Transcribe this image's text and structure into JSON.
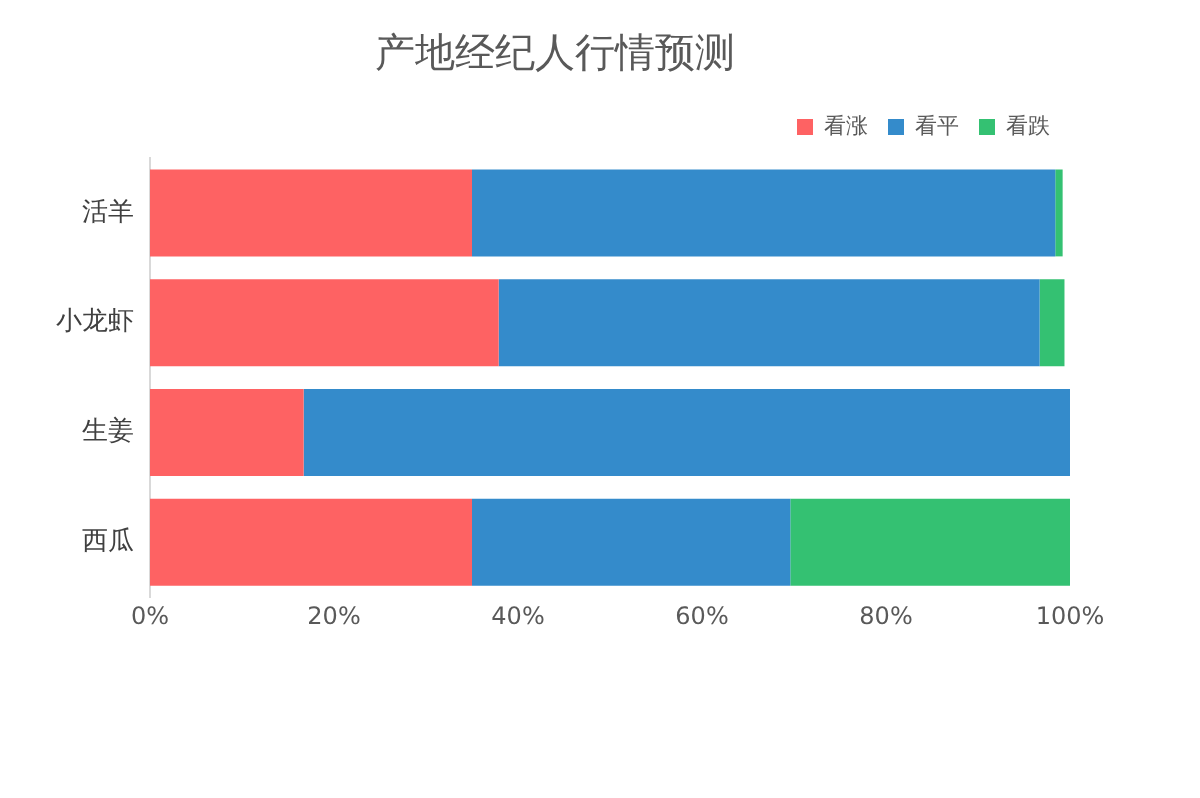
{
  "chart_data": {
    "type": "bar",
    "orientation": "horizontal",
    "stacked": true,
    "title": "产地经纪人行情预测",
    "categories": [
      "活羊",
      "小龙虾",
      "生姜",
      "西瓜"
    ],
    "series": [
      {
        "name": "看涨",
        "color": "#fe6263",
        "values": [
          35,
          37.9,
          16.7,
          35
        ]
      },
      {
        "name": "看平",
        "color": "#348bcb",
        "values": [
          63.4,
          58.8,
          83.3,
          34.6
        ]
      },
      {
        "name": "看跌",
        "color": "#34c172",
        "values": [
          0.8,
          2.7,
          0,
          30.4
        ]
      }
    ],
    "xlim": [
      0,
      100
    ],
    "xticks": [
      {
        "value": 0,
        "label": "0%"
      },
      {
        "value": 20,
        "label": "20%"
      },
      {
        "value": 40,
        "label": "40%"
      },
      {
        "value": 60,
        "label": "60%"
      },
      {
        "value": 80,
        "label": "80%"
      },
      {
        "value": 100,
        "label": "100%"
      }
    ],
    "grid": false,
    "legend": "top right"
  }
}
